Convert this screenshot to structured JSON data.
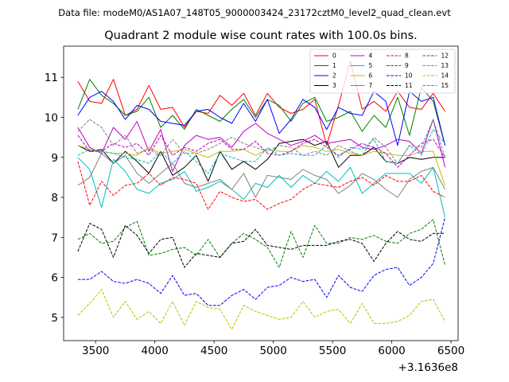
{
  "chart_data": {
    "type": "line",
    "suptitle": "Data file: modeM0/AS1A07_148T05_9000003424_23172cztM0_level2_quad_clean.evt",
    "title": "Quadrant 2 module wise count rates with 100.0s bins.",
    "xlabel": "",
    "ylabel": "",
    "x_offset_label": "+3.1636e8",
    "xlim": [
      3230,
      6560
    ],
    "ylim": [
      4.42,
      11.78
    ],
    "xticks": [
      3500,
      4000,
      4500,
      5000,
      5500,
      6000,
      6500
    ],
    "xtick_labels": [
      "3500",
      "4000",
      "4500",
      "5000",
      "5500",
      "6000",
      "6500"
    ],
    "yticks": [
      5,
      6,
      7,
      8,
      9,
      10,
      11
    ],
    "ytick_labels": [
      "5",
      "6",
      "7",
      "8",
      "9",
      "10",
      "11"
    ],
    "legend_position": "top-right",
    "legend_columns": 4,
    "x": [
      3350,
      3450,
      3550,
      3650,
      3750,
      3850,
      3950,
      4050,
      4150,
      4250,
      4350,
      4450,
      4550,
      4650,
      4750,
      4850,
      4950,
      5050,
      5150,
      5250,
      5350,
      5450,
      5550,
      5650,
      5750,
      5850,
      5950,
      6050,
      6150,
      6250,
      6350,
      6450
    ],
    "series": [
      {
        "name": "0",
        "color": "#ff0000",
        "dash": "solid",
        "values": [
          10.9,
          10.4,
          10.35,
          10.95,
          10.05,
          10.2,
          10.8,
          10.2,
          10.25,
          9.75,
          10.15,
          10.1,
          10.55,
          10.3,
          10.6,
          10.05,
          10.6,
          10.25,
          10.1,
          10.2,
          10.45,
          9.3,
          10.3,
          11.4,
          10.2,
          10.4,
          10.15,
          10.65,
          10.25,
          10.2,
          10.6,
          10.15
        ]
      },
      {
        "name": "1",
        "color": "#008000",
        "dash": "solid",
        "values": [
          10.2,
          10.95,
          10.55,
          10.35,
          10.05,
          10.15,
          10.5,
          9.75,
          10.05,
          9.7,
          10.2,
          10.05,
          9.9,
          10.2,
          10.45,
          10.0,
          10.45,
          10.3,
          9.9,
          10.35,
          10.5,
          9.9,
          10.0,
          10.15,
          9.65,
          10.05,
          9.75,
          10.5,
          9.55,
          10.75,
          10.4,
          9.3
        ]
      },
      {
        "name": "2",
        "color": "#0000ff",
        "dash": "solid",
        "values": [
          10.05,
          10.5,
          10.65,
          10.4,
          9.95,
          10.3,
          10.2,
          9.9,
          9.85,
          9.8,
          10.15,
          10.2,
          10.0,
          9.85,
          10.35,
          9.9,
          10.45,
          9.6,
          9.95,
          10.45,
          10.25,
          9.7,
          10.25,
          10.1,
          10.05,
          10.65,
          10.4,
          9.3,
          10.65,
          10.4,
          10.5,
          9.3
        ]
      },
      {
        "name": "3",
        "color": "#000000",
        "dash": "solid",
        "values": [
          9.3,
          9.15,
          9.2,
          8.85,
          9.15,
          8.9,
          8.6,
          9.15,
          8.55,
          8.75,
          9.05,
          8.4,
          9.15,
          8.7,
          8.9,
          8.7,
          8.95,
          9.35,
          9.4,
          9.45,
          9.3,
          9.4,
          8.75,
          9.05,
          9.05,
          9.25,
          8.9,
          8.85,
          9.0,
          8.95,
          9.0,
          9.0
        ]
      },
      {
        "name": "4",
        "color": "#bf00bf",
        "dash": "solid",
        "values": [
          9.75,
          9.25,
          9.1,
          9.75,
          9.45,
          9.9,
          9.15,
          9.7,
          8.65,
          9.3,
          9.55,
          9.45,
          9.5,
          9.25,
          9.65,
          9.85,
          9.6,
          9.45,
          9.3,
          9.4,
          9.55,
          9.35,
          9.4,
          9.45,
          9.25,
          9.2,
          9.3,
          9.45,
          9.4,
          9.1,
          9.95,
          8.75
        ]
      },
      {
        "name": "5",
        "color": "#00bfbf",
        "dash": "solid",
        "values": [
          9.0,
          8.7,
          7.75,
          8.95,
          8.65,
          8.2,
          8.1,
          8.35,
          8.45,
          8.65,
          8.15,
          8.25,
          8.4,
          8.2,
          7.95,
          8.35,
          8.25,
          8.55,
          8.25,
          8.55,
          8.35,
          8.65,
          8.4,
          8.75,
          8.1,
          8.35,
          8.6,
          8.6,
          8.6,
          8.35,
          8.75,
          7.5
        ]
      },
      {
        "name": "6",
        "color": "#bfbf00",
        "dash": "solid",
        "values": [
          9.3,
          9.2,
          9.15,
          9.1,
          9.1,
          9.05,
          9.25,
          9.1,
          9.15,
          9.2,
          9.1,
          9.0,
          9.15,
          9.15,
          9.2,
          9.05,
          9.2,
          9.15,
          9.15,
          9.3,
          9.25,
          9.15,
          9.2,
          9.1,
          9.05,
          9.15,
          9.1,
          9.05,
          9.05,
          9.15,
          9.15,
          8.3
        ]
      },
      {
        "name": "7",
        "color": "#808080",
        "dash": "solid",
        "values": [
          8.3,
          8.5,
          9.1,
          8.85,
          9.05,
          8.6,
          8.35,
          8.6,
          8.85,
          8.35,
          8.25,
          8.35,
          8.45,
          8.2,
          8.6,
          8.0,
          8.55,
          8.5,
          8.45,
          8.7,
          8.55,
          8.45,
          8.1,
          8.3,
          8.6,
          8.45,
          8.2,
          8.0,
          8.45,
          8.65,
          8.75,
          8.2
        ]
      },
      {
        "name": "8",
        "color": "#ff0000",
        "dash": "dashed",
        "values": [
          8.9,
          7.8,
          8.4,
          8.05,
          8.3,
          8.35,
          8.6,
          8.3,
          8.5,
          8.45,
          8.35,
          7.7,
          8.15,
          8.0,
          7.9,
          7.95,
          7.7,
          7.85,
          7.95,
          8.2,
          8.35,
          8.3,
          8.25,
          8.4,
          8.5,
          8.3,
          8.55,
          8.4,
          8.4,
          8.55,
          8.15,
          8.0
        ]
      },
      {
        "name": "9",
        "color": "#008000",
        "dash": "dashed",
        "values": [
          6.95,
          7.1,
          6.85,
          6.9,
          7.25,
          7.4,
          6.55,
          6.6,
          6.7,
          6.75,
          6.55,
          6.95,
          6.5,
          6.85,
          7.1,
          6.95,
          6.75,
          6.25,
          7.15,
          6.5,
          7.3,
          6.85,
          6.85,
          7.0,
          6.95,
          7.05,
          6.9,
          6.85,
          7.1,
          7.2,
          7.45,
          6.3
        ]
      },
      {
        "name": "10",
        "color": "#0000ff",
        "dash": "dashed",
        "values": [
          5.95,
          5.95,
          6.15,
          5.9,
          5.85,
          5.95,
          5.85,
          5.6,
          6.05,
          5.55,
          5.6,
          5.3,
          5.3,
          5.55,
          5.7,
          5.45,
          5.75,
          5.8,
          6.0,
          5.9,
          5.95,
          5.5,
          6.05,
          5.75,
          5.65,
          6.05,
          6.2,
          6.25,
          5.8,
          6.0,
          6.35,
          7.5
        ]
      },
      {
        "name": "11",
        "color": "#000000",
        "dash": "dashed",
        "values": [
          6.65,
          7.35,
          7.2,
          6.5,
          7.3,
          7.05,
          6.6,
          6.95,
          7.0,
          6.25,
          6.6,
          6.55,
          6.5,
          6.85,
          6.9,
          7.2,
          6.8,
          6.75,
          6.7,
          6.8,
          6.8,
          6.8,
          6.9,
          6.95,
          6.85,
          6.4,
          6.85,
          7.15,
          6.95,
          6.9,
          7.1,
          7.1
        ]
      },
      {
        "name": "12",
        "color": "#bf00bf",
        "dash": "dashed",
        "values": [
          9.55,
          9.15,
          9.15,
          9.35,
          9.25,
          9.35,
          9.05,
          9.55,
          9.05,
          9.25,
          9.15,
          9.35,
          9.45,
          9.2,
          9.2,
          9.4,
          9.1,
          9.05,
          9.15,
          9.35,
          9.45,
          9.25,
          9.05,
          9.2,
          9.35,
          9.25,
          9.1,
          8.75,
          9.05,
          9.35,
          9.45,
          9.0
        ]
      },
      {
        "name": "13",
        "color": "#00bfbf",
        "dash": "dashed",
        "values": [
          9.05,
          9.2,
          9.15,
          9.1,
          9.0,
          8.95,
          8.85,
          9.15,
          8.85,
          9.15,
          8.9,
          8.6,
          9.1,
          9.0,
          8.9,
          8.9,
          9.25,
          9.05,
          9.1,
          9.05,
          9.05,
          9.3,
          9.0,
          9.25,
          9.2,
          9.45,
          8.9,
          8.85,
          9.3,
          9.05,
          9.7,
          9.35
        ]
      },
      {
        "name": "14",
        "color": "#bfbf00",
        "dash": "dashed",
        "values": [
          5.05,
          5.35,
          5.7,
          5.0,
          5.4,
          4.95,
          5.15,
          4.85,
          5.4,
          4.8,
          5.4,
          5.25,
          5.2,
          4.7,
          5.3,
          5.15,
          5.05,
          4.95,
          5.0,
          5.4,
          5.0,
          5.15,
          5.2,
          4.85,
          5.35,
          4.85,
          4.85,
          4.9,
          5.05,
          5.4,
          5.45,
          4.9
        ]
      },
      {
        "name": "15",
        "color": "#808080",
        "dash": "dashed",
        "values": [
          9.65,
          9.95,
          9.75,
          9.3,
          9.55,
          9.1,
          9.2,
          9.05,
          9.45,
          9.1,
          9.1,
          9.2,
          9.35,
          9.5,
          9.35,
          9.25,
          9.15,
          9.3,
          9.25,
          9.05,
          9.15,
          9.05,
          9.3,
          9.15,
          9.05,
          9.5,
          9.25,
          8.85,
          9.3,
          9.25,
          9.95,
          9.0
        ]
      }
    ]
  }
}
